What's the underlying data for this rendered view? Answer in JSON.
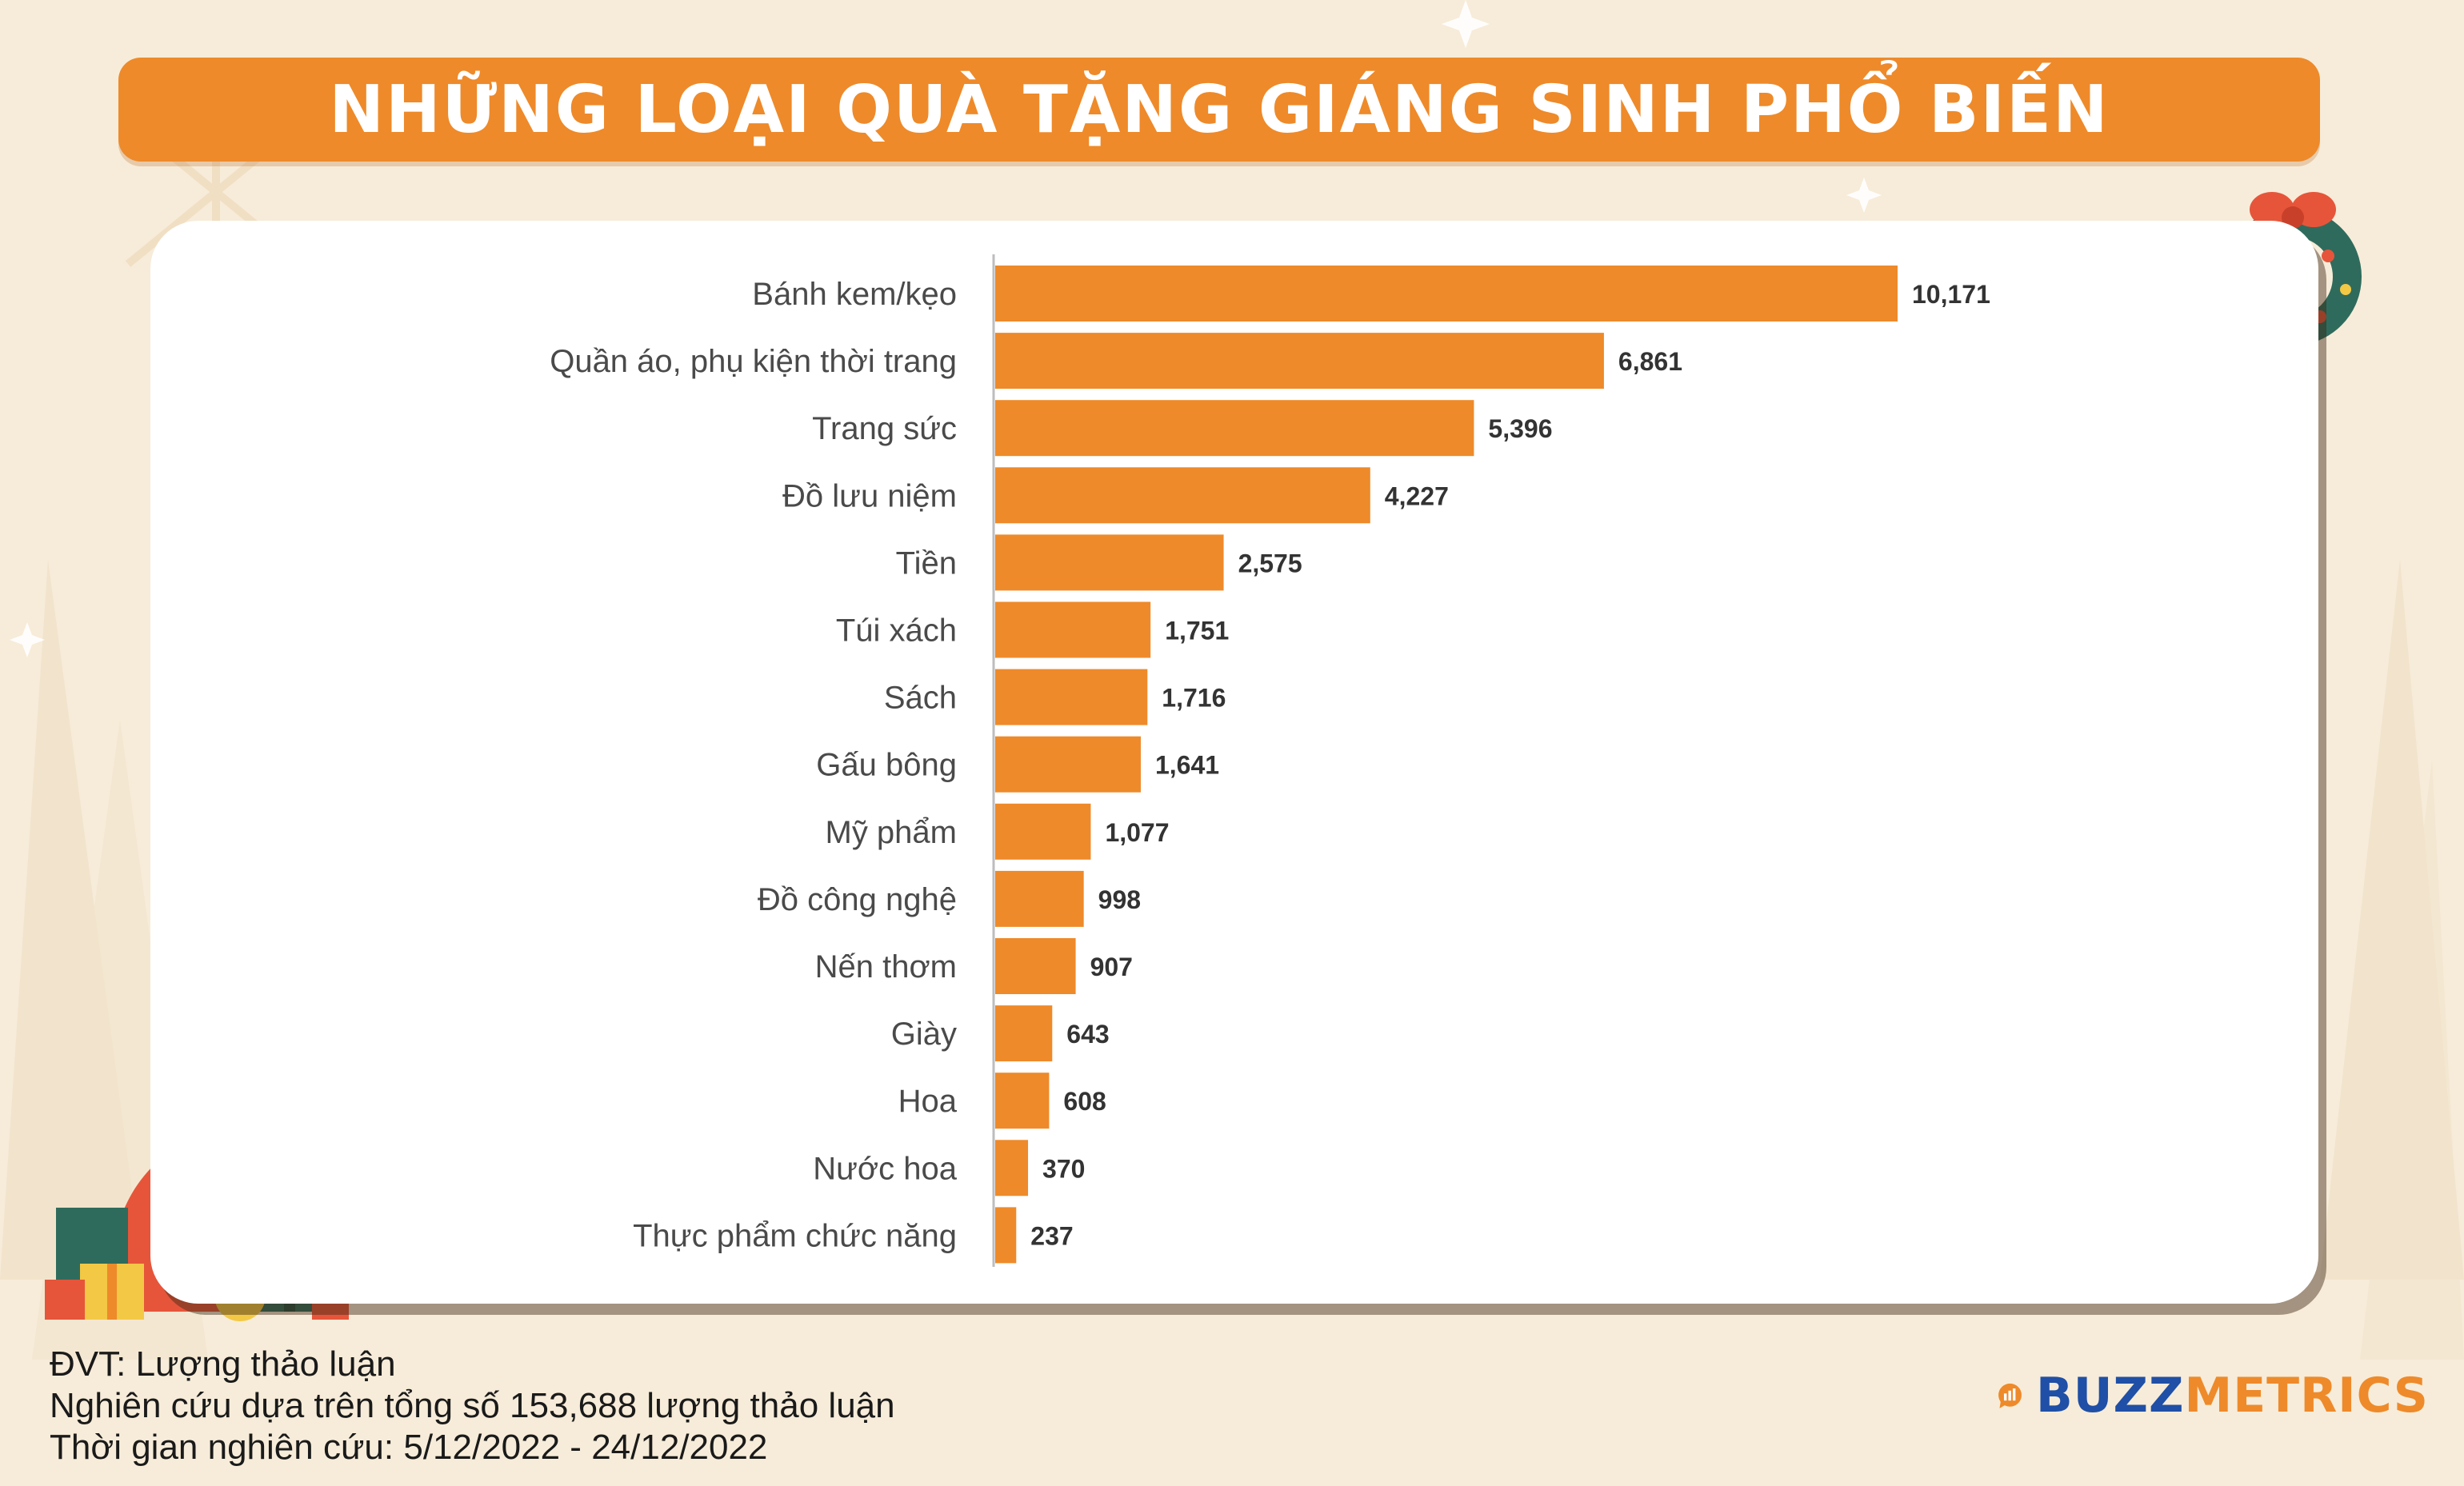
{
  "title": "NHỮNG LOẠI QUÀ TẶNG GIÁNG SINH PHỔ BIẾN",
  "chart_data": {
    "type": "bar",
    "orientation": "horizontal",
    "categories": [
      "Bánh kem/kẹo",
      "Quần áo, phụ kiện thời trang",
      "Trang sức",
      "Đồ lưu niệm",
      "Tiền",
      "Túi xách",
      "Sách",
      "Gấu bông",
      "Mỹ phẩm",
      "Đồ công nghệ",
      "Nến thơm",
      "Giày",
      "Hoa",
      "Nước hoa",
      "Thực phẩm chức năng"
    ],
    "values": [
      10171,
      6861,
      5396,
      4227,
      2575,
      1751,
      1716,
      1641,
      1077,
      998,
      907,
      643,
      608,
      370,
      237
    ],
    "value_labels": [
      "10,171",
      "6,861",
      "5,396",
      "4,227",
      "2,575",
      "1,751",
      "1,716",
      "1,641",
      "1,077",
      "998",
      "907",
      "643",
      "608",
      "370",
      "237"
    ],
    "xlim": [
      0,
      15000
    ],
    "grid": false,
    "bar_color": "#ee8a2a"
  },
  "footer": {
    "unit": "ĐVT: Lượng thảo luận",
    "basis": "Nghiên cứu dựa trên tổng số 153,688 lượng thảo luận",
    "period": "Thời gian nghiên cứu: 5/12/2022 - 24/12/2022"
  },
  "logo": {
    "part1": "BUZZ",
    "part2": "METRICS"
  },
  "colors": {
    "accent": "#ee8a2a",
    "background": "#f7ecd9",
    "brand_blue": "#1f4fa6"
  }
}
